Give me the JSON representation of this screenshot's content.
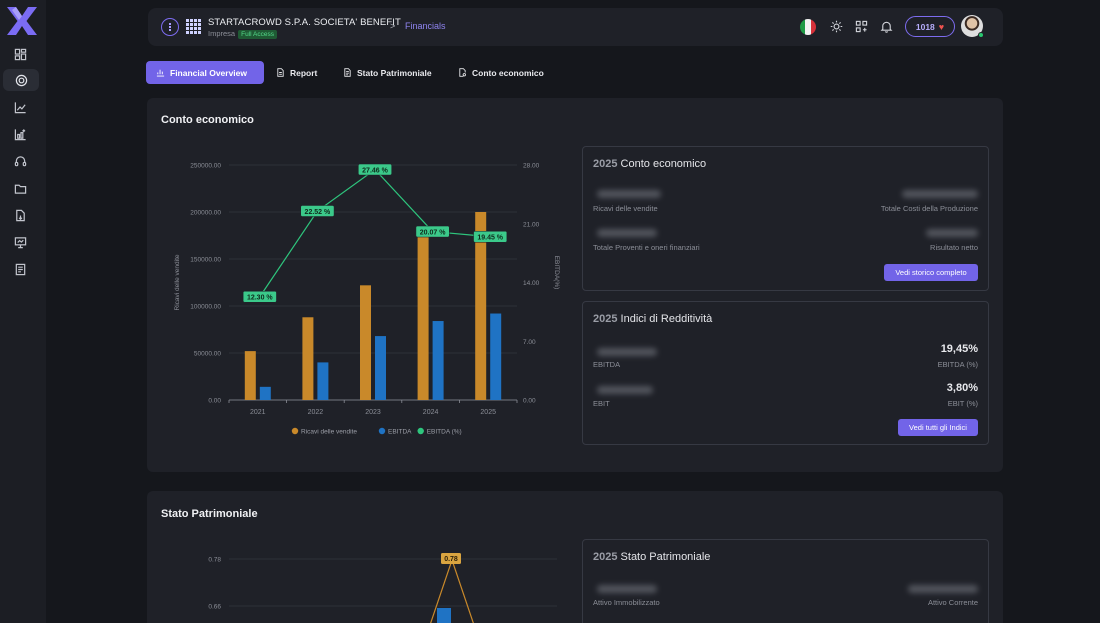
{
  "app": {
    "logo_icon": "x-logo-icon"
  },
  "sidebar": {
    "items": [
      {
        "icon": "dashboard-icon",
        "active": false
      },
      {
        "icon": "coins-icon",
        "active": true
      },
      {
        "icon": "line-chart-icon",
        "active": false
      },
      {
        "icon": "chart-plus-icon",
        "active": false
      },
      {
        "icon": "headset-icon",
        "active": false
      },
      {
        "icon": "folder-icon",
        "active": false
      },
      {
        "icon": "file-export-icon",
        "active": false
      },
      {
        "icon": "presentation-icon",
        "active": false
      },
      {
        "icon": "document-icon",
        "active": false
      }
    ]
  },
  "header": {
    "company_name": "STARTACROWD S.P.A. SOCIETA' BENEFIT",
    "company_type": "Impresa",
    "access_badge": "Full Access",
    "breadcrumb_sep": ">",
    "breadcrumb_current": "Financials",
    "credits": "1018",
    "flag": "italy-flag-icon"
  },
  "tabs": [
    {
      "label": "Financial Overview",
      "icon": "chart-icon",
      "active": true
    },
    {
      "label": "Report",
      "icon": "file-icon",
      "active": false
    },
    {
      "label": "Stato Patrimoniale",
      "icon": "file-text-icon",
      "active": false
    },
    {
      "label": "Conto economico",
      "icon": "file-search-icon",
      "active": false
    }
  ],
  "conto": {
    "title": "Conto economico",
    "summary": {
      "year": "2025",
      "title": "Conto economico",
      "labels": [
        "Ricavi delle vendite",
        "Totale Costi della Produzione",
        "Totale Proventi e oneri finanziari",
        "Risultato netto"
      ],
      "button": "Vedi storico completo"
    },
    "indici": {
      "year": "2025",
      "title": "Indici di Redditività",
      "rows": [
        {
          "label": "EBITDA",
          "value": "19,45%",
          "value_label": "EBITDA (%)"
        },
        {
          "label": "EBIT",
          "value": "3,80%",
          "value_label": "EBIT (%)"
        }
      ],
      "button": "Vedi tutti gli Indici"
    }
  },
  "stato": {
    "title": "Stato Patrimoniale",
    "summary": {
      "year": "2025",
      "title": "Stato Patrimoniale",
      "labels": [
        "Attivo Immobilizzato",
        "Attivo Corrente"
      ]
    }
  },
  "chart_data": [
    {
      "type": "bar",
      "categories": [
        "2021",
        "2022",
        "2023",
        "2024",
        "2025"
      ],
      "ylabel": "Ricavi delle vendite",
      "y2label": "EBITDA(%)",
      "ylim": [
        0,
        250000
      ],
      "y2lim": [
        0,
        28
      ],
      "yticks": [
        "0.00",
        "50000.00",
        "100000.00",
        "150000.00",
        "200000.00",
        "250000.00"
      ],
      "y2ticks": [
        "0.00",
        "7.00",
        "14.00",
        "21.00",
        "28.00"
      ],
      "series": [
        {
          "name": "Ricavi delle vendite",
          "type": "bar",
          "axis": "left",
          "color": "#c9892a",
          "values": [
            52000,
            88000,
            122000,
            176000,
            200000
          ]
        },
        {
          "name": "EBITDA",
          "type": "bar",
          "axis": "left",
          "color": "#1f73c4",
          "values": [
            14000,
            40000,
            68000,
            84000,
            92000
          ]
        },
        {
          "name": "EBITDA (%)",
          "type": "line",
          "axis": "right",
          "color": "#2ec57d",
          "values": [
            12.3,
            22.52,
            27.46,
            20.07,
            19.45
          ],
          "labels": [
            "12.30 %",
            "22.52 %",
            "27.46 %",
            "20.07 %",
            "19.45 %"
          ]
        }
      ],
      "legend": "bottom"
    },
    {
      "type": "line",
      "yticks": [
        "0.78",
        "0.66"
      ],
      "annotations": [
        "0.78"
      ],
      "note": "partially visible, cut off at bottom"
    }
  ]
}
